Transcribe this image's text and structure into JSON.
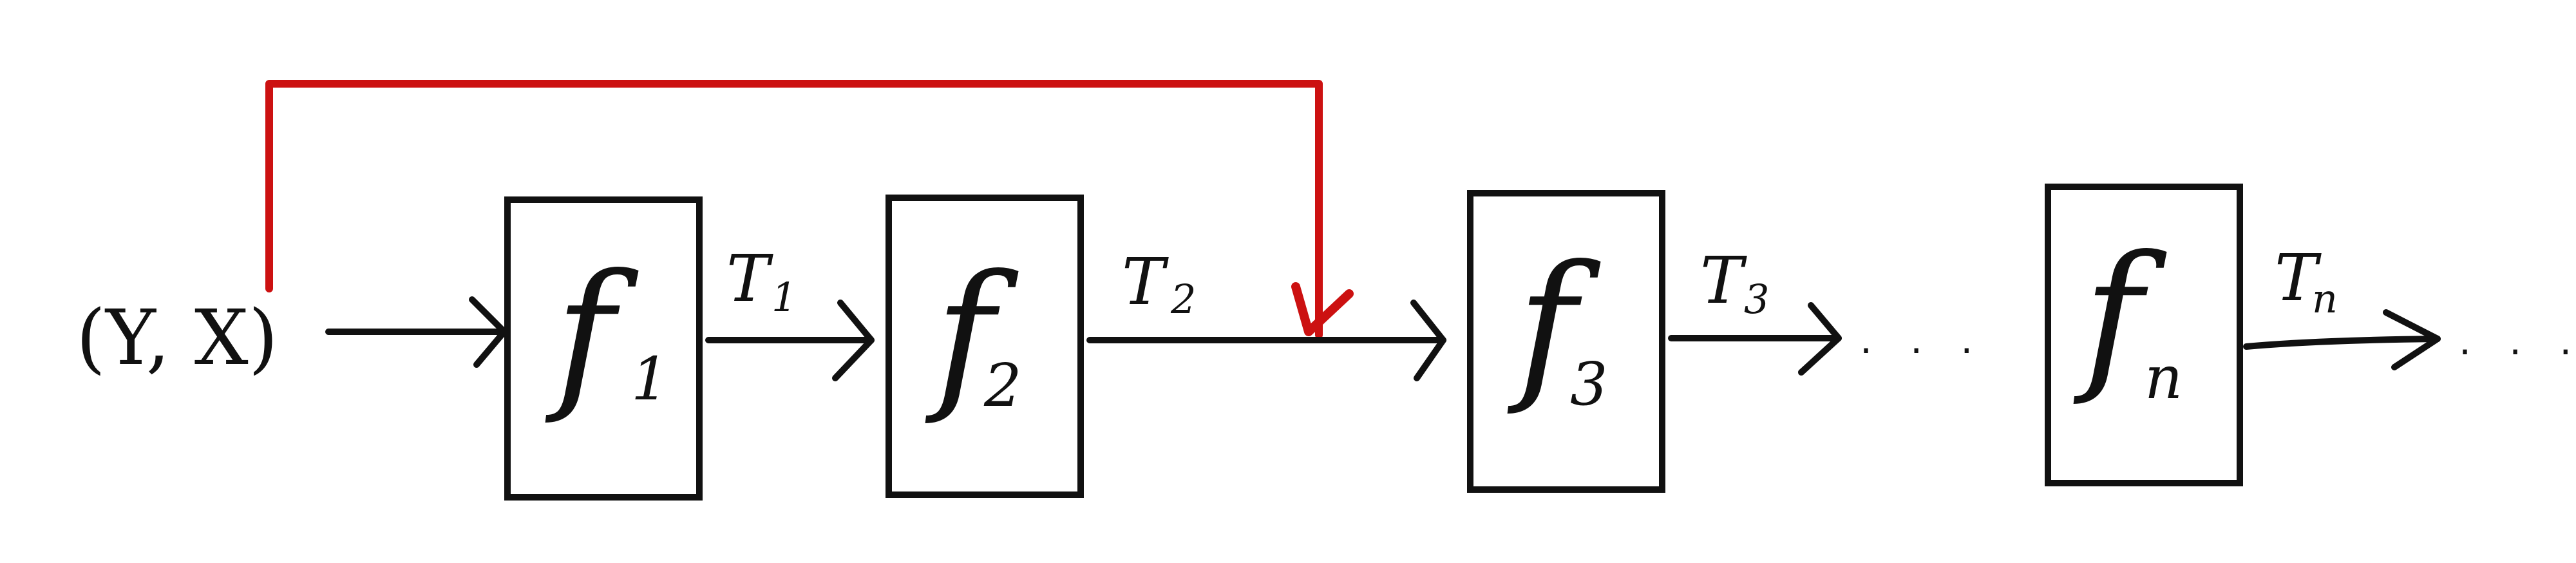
{
  "diagram": {
    "input": {
      "label": "(Y, X)"
    },
    "functions": [
      {
        "main": "f",
        "sub": "1"
      },
      {
        "main": "f",
        "sub": "2"
      },
      {
        "main": "f",
        "sub": "3"
      },
      {
        "main": "f",
        "sub": "n"
      }
    ],
    "edge_labels": [
      {
        "main": "T",
        "sub": "1"
      },
      {
        "main": "T",
        "sub": "2"
      },
      {
        "main": "T",
        "sub": "3"
      },
      {
        "main": "T",
        "sub": "n"
      }
    ],
    "ellipsis": [
      ". . .",
      ". . ."
    ],
    "colors": {
      "ink": "#111111",
      "skip_connection": "#cc1111"
    }
  }
}
